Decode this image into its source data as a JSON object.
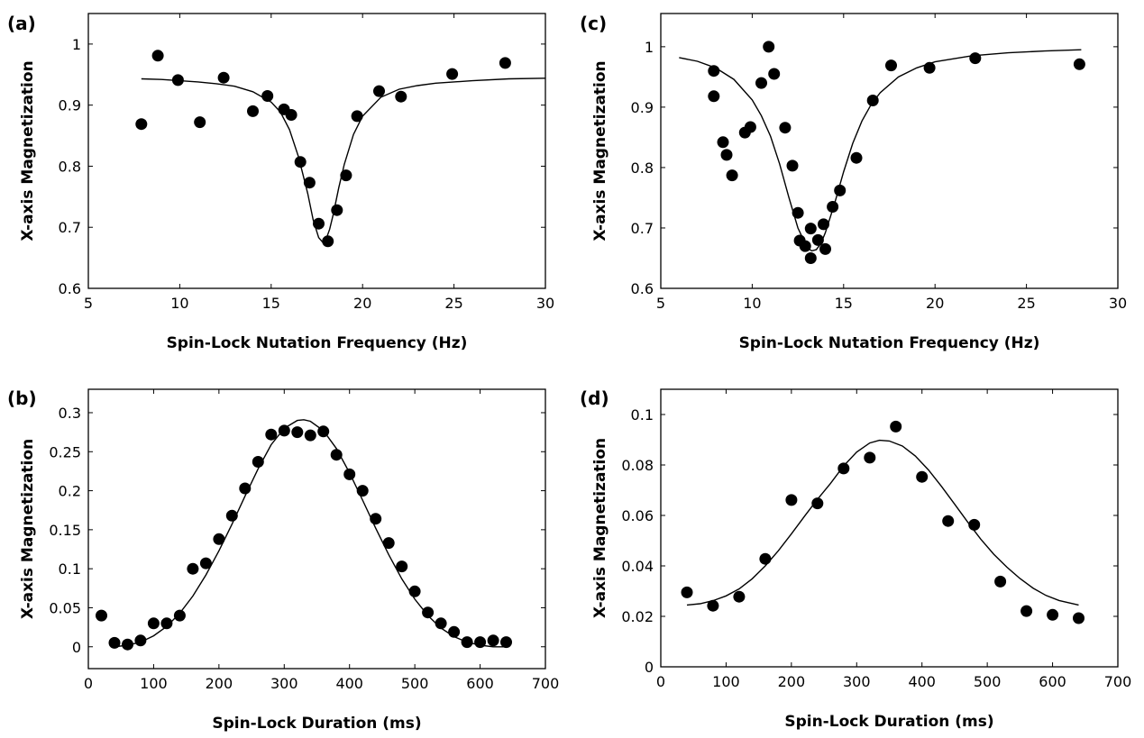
{
  "chart_data": [
    {
      "id": "a",
      "type": "scatter",
      "panel_label": "(a)",
      "title": "",
      "xlabel": "Spin-Lock Nutation Frequency (Hz)",
      "ylabel": "X-axis Magnetization",
      "xlim": [
        5,
        30
      ],
      "ylim": [
        0.6,
        1.05
      ],
      "xticks": [
        5,
        10,
        15,
        20,
        25,
        30
      ],
      "yticks": [
        0.6,
        0.7,
        0.8,
        0.9,
        1.0
      ],
      "ytick_labels": [
        "0.6",
        "0.7",
        "0.8",
        "0.9",
        "1"
      ],
      "grid": false,
      "points": {
        "x": [
          7.9,
          8.8,
          9.9,
          11.1,
          12.4,
          14.0,
          14.8,
          15.7,
          16.1,
          16.6,
          17.1,
          17.6,
          18.1,
          18.6,
          19.1,
          19.7,
          20.9,
          22.1,
          24.9,
          27.8
        ],
        "y": [
          0.869,
          0.981,
          0.941,
          0.872,
          0.945,
          0.89,
          0.915,
          0.893,
          0.884,
          0.807,
          0.773,
          0.706,
          0.677,
          0.728,
          0.785,
          0.882,
          0.923,
          0.914,
          0.951,
          0.969
        ]
      },
      "fit": {
        "x": [
          7.9,
          9,
          10,
          11,
          12,
          13,
          14,
          15,
          15.5,
          16,
          16.5,
          17,
          17.3,
          17.6,
          17.8,
          18.0,
          18.2,
          18.4,
          18.7,
          19.0,
          19.5,
          20,
          21,
          22,
          23,
          24,
          26,
          28,
          30
        ],
        "y": [
          0.943,
          0.942,
          0.94,
          0.938,
          0.935,
          0.931,
          0.922,
          0.905,
          0.889,
          0.86,
          0.815,
          0.755,
          0.712,
          0.683,
          0.676,
          0.68,
          0.697,
          0.722,
          0.765,
          0.803,
          0.852,
          0.882,
          0.913,
          0.926,
          0.932,
          0.936,
          0.94,
          0.943,
          0.944
        ]
      }
    },
    {
      "id": "b",
      "type": "scatter",
      "panel_label": "(b)",
      "title": "",
      "xlabel": "Spin-Lock Duration (ms)",
      "ylabel": "X-axis Magnetization",
      "xlim": [
        0,
        700
      ],
      "ylim": [
        -0.028,
        0.33
      ],
      "xticks": [
        0,
        100,
        200,
        300,
        400,
        500,
        600,
        700
      ],
      "yticks": [
        0,
        0.05,
        0.1,
        0.15,
        0.2,
        0.25,
        0.3
      ],
      "ytick_labels": [
        "0",
        "0.05",
        "0.1",
        "0.15",
        "0.2",
        "0.25",
        "0.3"
      ],
      "grid": false,
      "points": {
        "x": [
          20,
          40,
          60,
          80,
          100,
          120,
          140,
          160,
          180,
          200,
          220,
          240,
          260,
          280,
          300,
          320,
          340,
          360,
          380,
          400,
          420,
          440,
          460,
          480,
          500,
          520,
          540,
          560,
          580,
          600,
          620,
          640
        ],
        "y": [
          0.04,
          0.005,
          0.003,
          0.008,
          0.03,
          0.03,
          0.04,
          0.1,
          0.107,
          0.138,
          0.168,
          0.203,
          0.237,
          0.272,
          0.277,
          0.275,
          0.271,
          0.276,
          0.246,
          0.221,
          0.2,
          0.164,
          0.133,
          0.103,
          0.071,
          0.044,
          0.03,
          0.019,
          0.006,
          0.006,
          0.008,
          0.006
        ]
      },
      "fit": {
        "x": [
          40,
          60,
          80,
          100,
          120,
          140,
          160,
          180,
          200,
          220,
          240,
          260,
          280,
          300,
          320,
          330,
          340,
          360,
          380,
          400,
          420,
          440,
          460,
          480,
          500,
          520,
          540,
          560,
          580,
          600,
          620,
          640
        ],
        "y": [
          0.0,
          0.002,
          0.006,
          0.014,
          0.026,
          0.043,
          0.065,
          0.092,
          0.123,
          0.157,
          0.193,
          0.228,
          0.259,
          0.28,
          0.29,
          0.291,
          0.289,
          0.277,
          0.254,
          0.223,
          0.188,
          0.152,
          0.118,
          0.087,
          0.061,
          0.04,
          0.024,
          0.013,
          0.006,
          0.002,
          0.0,
          0.0
        ]
      }
    },
    {
      "id": "c",
      "type": "scatter",
      "panel_label": "(c)",
      "title": "",
      "xlabel": "Spin-Lock Nutation Frequency (Hz)",
      "ylabel": "X-axis Magnetization",
      "xlim": [
        5,
        30
      ],
      "ylim": [
        0.6,
        1.055
      ],
      "xticks": [
        5,
        10,
        15,
        20,
        25,
        30
      ],
      "yticks": [
        0.6,
        0.7,
        0.8,
        0.9,
        1.0
      ],
      "ytick_labels": [
        "0.6",
        "0.7",
        "0.8",
        "0.9",
        "1"
      ],
      "grid": false,
      "points": {
        "x": [
          7.9,
          7.9,
          8.4,
          8.6,
          8.9,
          9.6,
          9.9,
          10.5,
          10.9,
          11.2,
          11.8,
          12.2,
          12.5,
          12.6,
          12.9,
          13.2,
          13.2,
          13.6,
          13.9,
          14.0,
          14.4,
          14.8,
          15.7,
          16.6,
          17.6,
          19.7,
          22.2,
          27.9
        ],
        "y": [
          0.96,
          0.918,
          0.842,
          0.821,
          0.787,
          0.858,
          0.867,
          0.94,
          1.0,
          0.955,
          0.866,
          0.803,
          0.725,
          0.679,
          0.67,
          0.699,
          0.65,
          0.68,
          0.706,
          0.665,
          0.735,
          0.762,
          0.816,
          0.911,
          0.969,
          0.965,
          0.981,
          0.971
        ]
      },
      "fit": {
        "x": [
          6,
          7,
          8,
          9,
          10,
          10.5,
          11,
          11.5,
          12,
          12.5,
          13,
          13.25,
          13.5,
          13.75,
          14,
          14.5,
          15,
          15.5,
          16,
          16.5,
          17,
          18,
          19,
          20,
          22,
          24,
          26,
          28
        ],
        "y": [
          0.982,
          0.976,
          0.965,
          0.946,
          0.912,
          0.886,
          0.852,
          0.806,
          0.751,
          0.7,
          0.668,
          0.662,
          0.664,
          0.674,
          0.692,
          0.74,
          0.793,
          0.84,
          0.877,
          0.904,
          0.924,
          0.95,
          0.965,
          0.975,
          0.985,
          0.99,
          0.993,
          0.995
        ]
      }
    },
    {
      "id": "d",
      "type": "scatter",
      "panel_label": "(d)",
      "title": "",
      "xlabel": "Spin-Lock Duration (ms)",
      "ylabel": "X-axis Magnetization",
      "xlim": [
        0,
        700
      ],
      "ylim": [
        0,
        0.11
      ],
      "xticks": [
        0,
        100,
        200,
        300,
        400,
        500,
        600,
        700
      ],
      "yticks": [
        0,
        0.02,
        0.04,
        0.06,
        0.08,
        0.1
      ],
      "ytick_labels": [
        "0",
        "0.02",
        "0.04",
        "0.06",
        "0.08",
        "0.1"
      ],
      "grid": false,
      "points": {
        "x": [
          40,
          80,
          120,
          160,
          200,
          240,
          280,
          320,
          360,
          400,
          440,
          480,
          520,
          560,
          600,
          640
        ],
        "y": [
          0.0295,
          0.0242,
          0.0278,
          0.0428,
          0.0661,
          0.0648,
          0.0786,
          0.0829,
          0.0952,
          0.0753,
          0.0578,
          0.0563,
          0.0338,
          0.0221,
          0.0206,
          0.0193
        ]
      },
      "fit": {
        "x": [
          40,
          60,
          80,
          100,
          120,
          140,
          160,
          180,
          200,
          220,
          240,
          260,
          280,
          300,
          320,
          335,
          350,
          370,
          390,
          410,
          430,
          450,
          470,
          490,
          510,
          530,
          550,
          570,
          590,
          610,
          640
        ],
        "y": [
          0.0245,
          0.025,
          0.0262,
          0.0281,
          0.0309,
          0.0349,
          0.04,
          0.046,
          0.0527,
          0.0596,
          0.0664,
          0.0727,
          0.0796,
          0.0851,
          0.0887,
          0.0898,
          0.0895,
          0.0875,
          0.0835,
          0.078,
          0.0715,
          0.0645,
          0.0574,
          0.0506,
          0.0446,
          0.0395,
          0.035,
          0.0312,
          0.0283,
          0.0263,
          0.0245
        ]
      }
    }
  ]
}
